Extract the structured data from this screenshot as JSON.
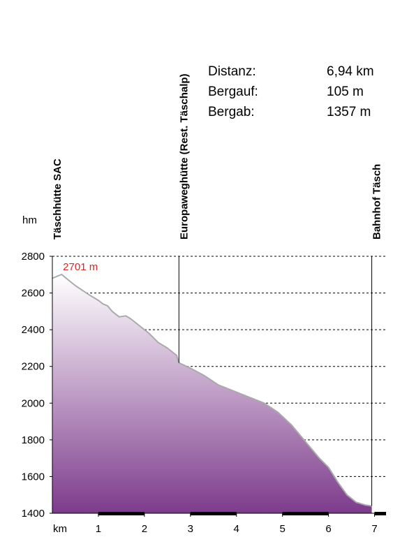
{
  "chart_data": {
    "type": "area",
    "y_label": "hm",
    "x_label": "km",
    "x": [
      0,
      0.2,
      0.5,
      0.8,
      1.0,
      1.1,
      1.2,
      1.3,
      1.45,
      1.6,
      1.7,
      1.9,
      2.1,
      2.3,
      2.5,
      2.7,
      2.75,
      3.0,
      3.3,
      3.6,
      4.0,
      4.3,
      4.6,
      4.9,
      5.2,
      5.5,
      5.8,
      6.0,
      6.2,
      6.4,
      6.6,
      6.8,
      6.94
    ],
    "values": [
      2680,
      2701,
      2640,
      2590,
      2560,
      2540,
      2530,
      2500,
      2470,
      2475,
      2460,
      2420,
      2380,
      2330,
      2300,
      2260,
      2220,
      2190,
      2150,
      2100,
      2060,
      2030,
      2000,
      1950,
      1880,
      1790,
      1700,
      1650,
      1570,
      1500,
      1460,
      1445,
      1440
    ],
    "color": "#7d3b8c",
    "line_color": "#aaaaaa",
    "xlim": [
      0,
      7.25
    ],
    "ylim": [
      1400,
      2800
    ],
    "xticks": [
      1,
      2,
      3,
      4,
      5,
      6,
      7
    ],
    "yticks": [
      1400,
      1600,
      1800,
      2000,
      2200,
      2400,
      2600,
      2800
    ],
    "grid": true,
    "waypoints": [
      {
        "name": "Täschhütte SAC",
        "x": 0
      },
      {
        "name": "Europaweghütte (Rest. Täschalp)",
        "x": 2.75
      },
      {
        "name": "Bahnhof Täsch",
        "x": 6.94
      }
    ],
    "annotations": [
      {
        "label": "2701 m",
        "x": 0.2,
        "value": 2701,
        "color": "#e8211d"
      }
    ],
    "stats": [
      {
        "label": "Distanz:",
        "value": "6,94 km"
      },
      {
        "label": "Bergauf:",
        "value": "105 m"
      },
      {
        "label": "Bergab:",
        "value": "1357 m"
      }
    ]
  }
}
